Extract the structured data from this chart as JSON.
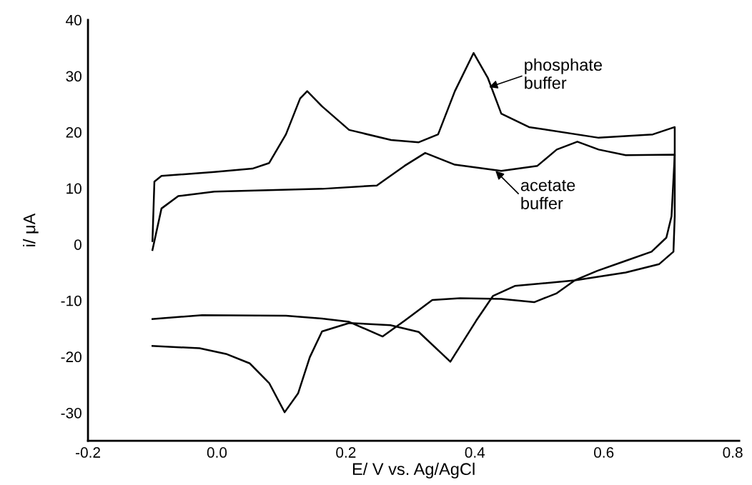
{
  "chart_data": {
    "type": "line",
    "xlabel": "E/ V vs. Ag/AgCl",
    "ylabel": "i/ μA",
    "xlim": [
      -0.2,
      0.81
    ],
    "ylim": [
      -35,
      40
    ],
    "xticks": [
      -0.2,
      {
        "value": 0.0,
        "label": "0.0"
      },
      0.2,
      0.4,
      0.6,
      0.8
    ],
    "yticks": [
      -30,
      -20,
      -10,
      0,
      10,
      20,
      30,
      40
    ],
    "grid": false,
    "legend": false,
    "marker": "none",
    "line_style": "solid",
    "series": [
      {
        "color": "#000000",
        "x": [
          -0.1,
          -0.097,
          -0.086,
          -0.004,
          0.055,
          0.081,
          0.107,
          0.129,
          0.14,
          0.163,
          0.205,
          0.27,
          0.313,
          0.343,
          0.369,
          0.398,
          0.42,
          0.441,
          0.484,
          0.592,
          0.676,
          0.71,
          0.71,
          0.708,
          0.686,
          0.634,
          0.555,
          0.462,
          0.428,
          0.402,
          0.362,
          0.313,
          0.269,
          0.205,
          0.163,
          0.144,
          0.126,
          0.105,
          0.081,
          0.051,
          0.014,
          -0.027,
          -0.1
        ],
        "values": [
          0.6,
          11.2,
          12.2,
          12.9,
          13.5,
          14.5,
          19.6,
          26,
          27.3,
          24.6,
          20.4,
          18.6,
          18.2,
          19.6,
          27.3,
          34.1,
          29.7,
          23.3,
          20.9,
          19,
          19.6,
          20.9,
          5,
          -1.3,
          -3.5,
          -5,
          -6.4,
          -7.4,
          -9.2,
          -13.6,
          -20.9,
          -15.6,
          -14.4,
          -14,
          -15.5,
          -20.1,
          -26.5,
          -29.9,
          -24.7,
          -21.2,
          -19.5,
          -18.5,
          -18.1
        ]
      },
      {
        "color": "#000000",
        "x": [
          -0.1,
          -0.086,
          -0.06,
          -0.004,
          0.163,
          0.248,
          0.291,
          0.323,
          0.369,
          0.441,
          0.497,
          0.527,
          0.559,
          0.592,
          0.634,
          0.71,
          0.705,
          0.697,
          0.674,
          0.632,
          0.59,
          0.555,
          0.527,
          0.492,
          0.441,
          0.377,
          0.334,
          0.291,
          0.257,
          0.205,
          0.163,
          0.107,
          -0.023,
          -0.1
        ],
        "values": [
          -1,
          6.4,
          8.6,
          9.4,
          9.9,
          10.5,
          14,
          16.3,
          14.2,
          13.1,
          14,
          16.9,
          18.3,
          16.9,
          15.9,
          16,
          5,
          1.2,
          -1.3,
          -3,
          -4.7,
          -6.4,
          -8.7,
          -10.3,
          -9.7,
          -9.6,
          -9.9,
          -13.6,
          -16.4,
          -13.8,
          -13.2,
          -12.7,
          -12.6,
          -13.3
        ]
      }
    ],
    "annotations": [
      {
        "text": "phosphate\nbuffer",
        "x": 0.422,
        "y": 28
      },
      {
        "text": "acetate\nbuffer",
        "x": 0.432,
        "y": 13.1
      }
    ]
  }
}
